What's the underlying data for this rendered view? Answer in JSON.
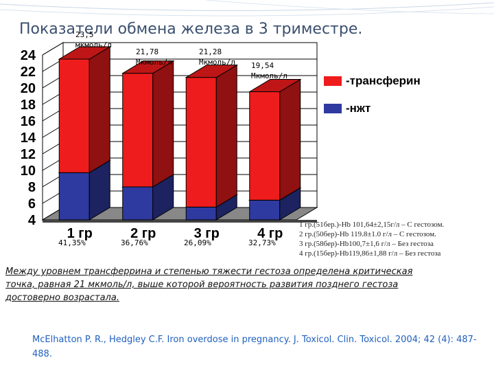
{
  "slide": {
    "title": "Показатели обмена железа в 3 триместре.",
    "notes": [
      "1 гр.(51бер.)-Hb 101,64±2,15г/л – С гестозом.",
      "2 гр.(50бер)-Hb 119.8±1.0 г/л – С гестозом.",
      "3 гр.(58бер)-Hb100,7±1,6 г/л – Без гестоза",
      "4 гр.(15бер)-Hb119,86±1,88 г/л – Без гестоза"
    ],
    "conclusion": "Между уровнем трансферрина и степенью тяжести гестоза определена критическая точка, равная 21 мкмоль/л, выше которой вероятность развития позднего гестоза достоверно возрастала.",
    "reference": "McElhatton P. R., Hedgley C.F. Iron overdose in pregnancy. J. Toxicol. Clin. Toxicol. 2004; 42 (4): 487-488."
  },
  "chart_data": {
    "type": "bar",
    "categories": [
      "1 гр",
      "2 гр",
      "3 гр",
      "4 гр"
    ],
    "series": [
      {
        "name": "-трансферин",
        "values": [
          23.5,
          21.78,
          21.28,
          19.54
        ],
        "color": "#ee1c1c"
      },
      {
        "name": "-нжт",
        "values": [
          9.72,
          8.0,
          5.55,
          6.39
        ],
        "color": "#2e3aa0"
      }
    ],
    "value_labels": [
      {
        "line1": "23,5",
        "line2": "мкмоль/л"
      },
      {
        "line1": "21,78",
        "line2": "Мкмоль/л"
      },
      {
        "line1": "21,28",
        "line2": "Мкмоль/л"
      },
      {
        "line1": "19,54",
        "line2": "Мкмоль/л"
      }
    ],
    "percent_labels": [
      "41,35%",
      "36,76%",
      "26,09%",
      "32,73%"
    ],
    "yticks": [
      4,
      6,
      8,
      10,
      12,
      14,
      16,
      18,
      20,
      22,
      24
    ],
    "ylim": [
      4,
      24
    ],
    "grid": true,
    "legend_position": "right",
    "style": "3d-bar"
  }
}
